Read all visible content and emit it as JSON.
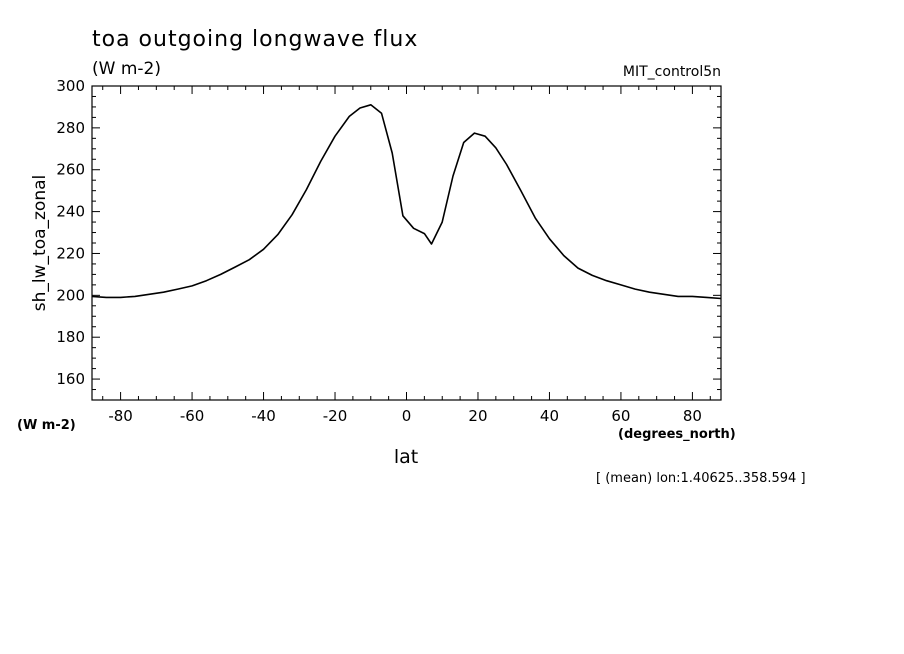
{
  "chart_data": {
    "type": "line",
    "title": "toa outgoing longwave flux",
    "subtitle": "(W m-2)",
    "run_label": "MIT_control5n",
    "ylabel": "sh_lw_toa_zonal",
    "y_units": "(W m-2)",
    "xlabel": "lat",
    "x_units": "(degrees_north)",
    "footnote": "[ (mean) lon:1.40625..358.594 ]",
    "xlim": [
      -88,
      88
    ],
    "ylim": [
      150,
      300
    ],
    "x_ticks": [
      -80,
      -60,
      -40,
      -20,
      0,
      20,
      40,
      60,
      80
    ],
    "x_tick_labels": [
      "-80",
      "-60",
      "-40",
      "-20",
      "0",
      "20",
      "40",
      "60",
      "80"
    ],
    "y_ticks": [
      160,
      180,
      200,
      220,
      240,
      260,
      280,
      300
    ],
    "y_tick_labels": [
      "160",
      "180",
      "200",
      "220",
      "240",
      "260",
      "280",
      "300"
    ],
    "grid": false,
    "series": [
      {
        "color": "#000000",
        "x": [
          -88,
          -84,
          -80,
          -76,
          -72,
          -68,
          -64,
          -60,
          -56,
          -52,
          -48,
          -44,
          -40,
          -36,
          -32,
          -28,
          -24,
          -20,
          -16,
          -13,
          -10,
          -7,
          -4,
          -1,
          2,
          5,
          7,
          10,
          13,
          16,
          19,
          22,
          25,
          28,
          32,
          36,
          40,
          44,
          48,
          52,
          56,
          60,
          64,
          68,
          72,
          76,
          80,
          84,
          88
        ],
        "y": [
          199.5,
          199,
          199,
          199.5,
          200.5,
          201.5,
          203,
          204.5,
          207,
          210,
          213.5,
          217,
          222,
          229,
          238.5,
          250.5,
          264,
          276,
          285.5,
          289.5,
          291,
          287,
          268,
          238,
          232,
          229.5,
          224.5,
          235,
          257,
          273,
          277.5,
          276,
          270.5,
          262.5,
          250,
          237,
          227,
          219,
          213,
          209.5,
          207,
          205,
          203,
          201.5,
          200.5,
          199.5,
          199.5,
          199,
          198.5
        ]
      }
    ]
  }
}
